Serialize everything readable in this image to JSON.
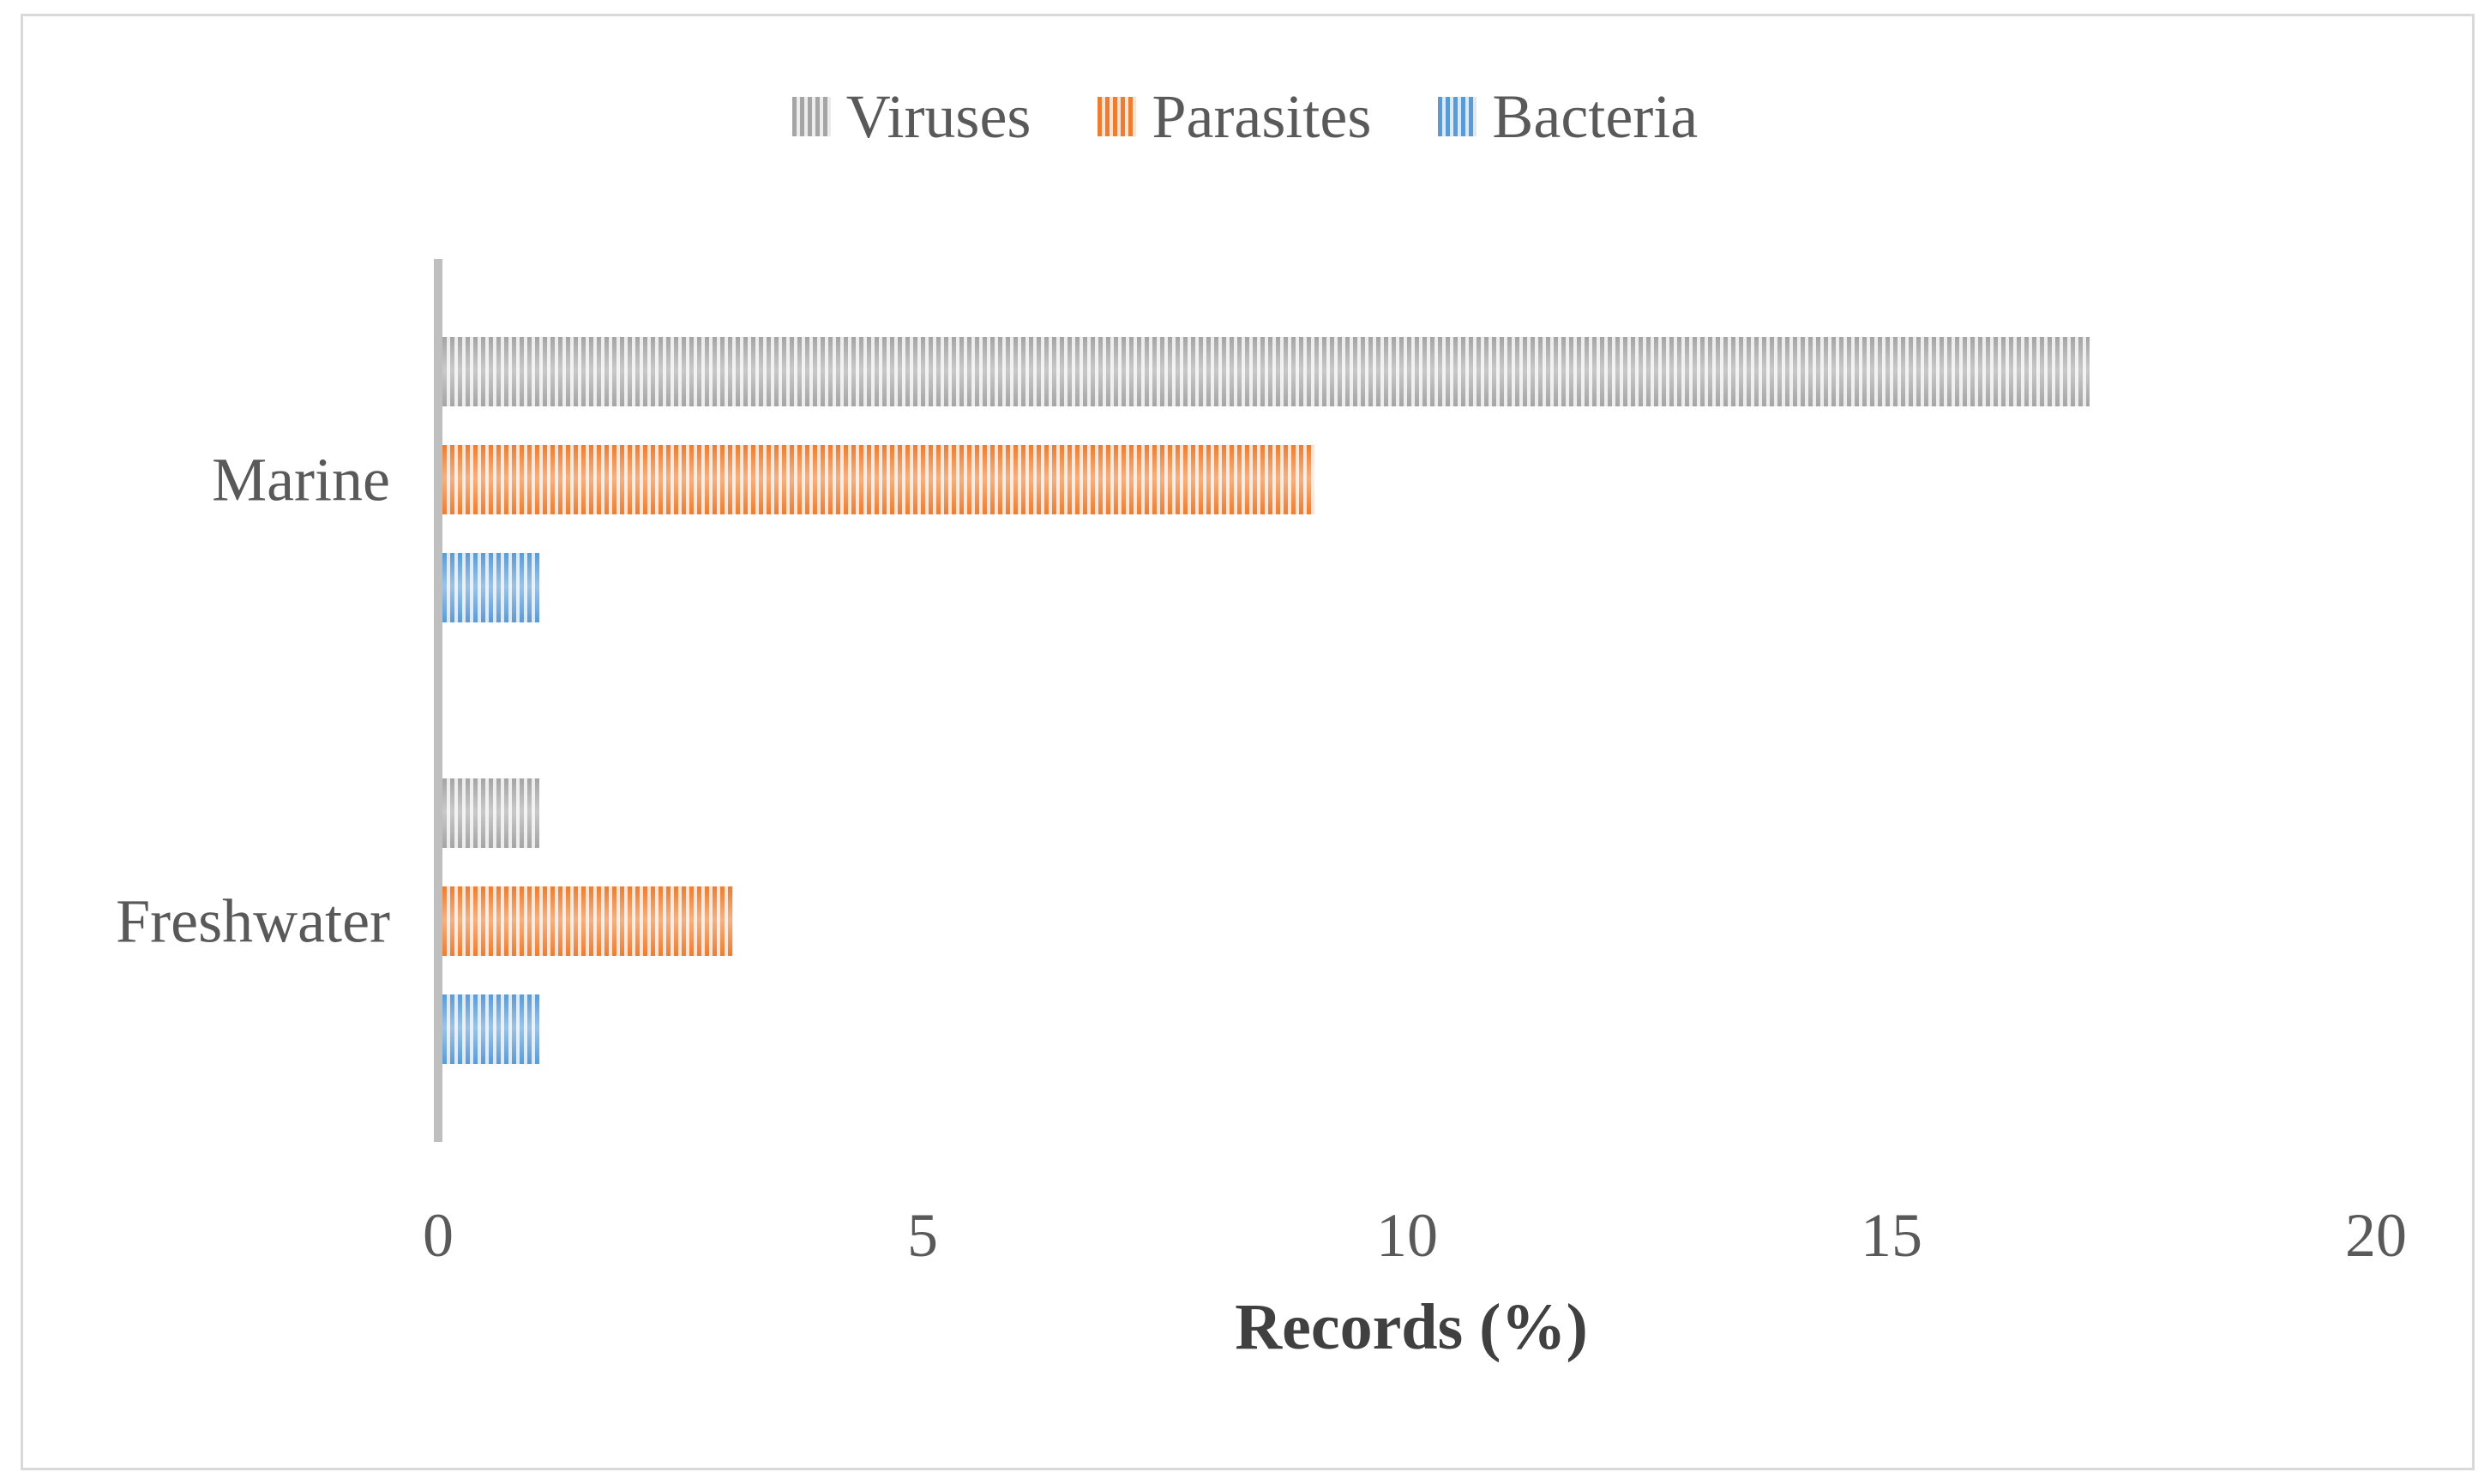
{
  "figure": {
    "background_color": "#FFFFFF",
    "border_color": "#D9D9D9"
  },
  "chart_data": {
    "type": "bar",
    "orientation": "horizontal",
    "title": "",
    "xlabel": "Records (%)",
    "ylabel": "",
    "categories": [
      "Marine",
      "Freshwater"
    ],
    "series": [
      {
        "name": "Viruses",
        "color": "#A5A5A5",
        "pattern_light": "#ECECEC",
        "values": [
          17,
          1
        ]
      },
      {
        "name": "Parasites",
        "color": "#ED7D31",
        "pattern_light": "#FAE3D3",
        "values": [
          9,
          3
        ]
      },
      {
        "name": "Bacteria",
        "color": "#5B9BD5",
        "pattern_light": "#DBE9F6",
        "values": [
          1,
          1
        ]
      }
    ],
    "xlim": [
      0,
      20
    ],
    "x_ticks": [
      "0",
      "5",
      "10",
      "15",
      "20"
    ],
    "x_tick_values": [
      0,
      5,
      10,
      15,
      20
    ],
    "grid": false,
    "legend_position": "top",
    "legend_entries": [
      "Viruses",
      "Parasites",
      "Bacteria"
    ],
    "bar_fill_pattern": "vertical-stripes",
    "axis_line_color": "#BFBFBF",
    "tick_label_color": "#595959",
    "category_label_color": "#595959",
    "axis_title_color": "#404040"
  }
}
